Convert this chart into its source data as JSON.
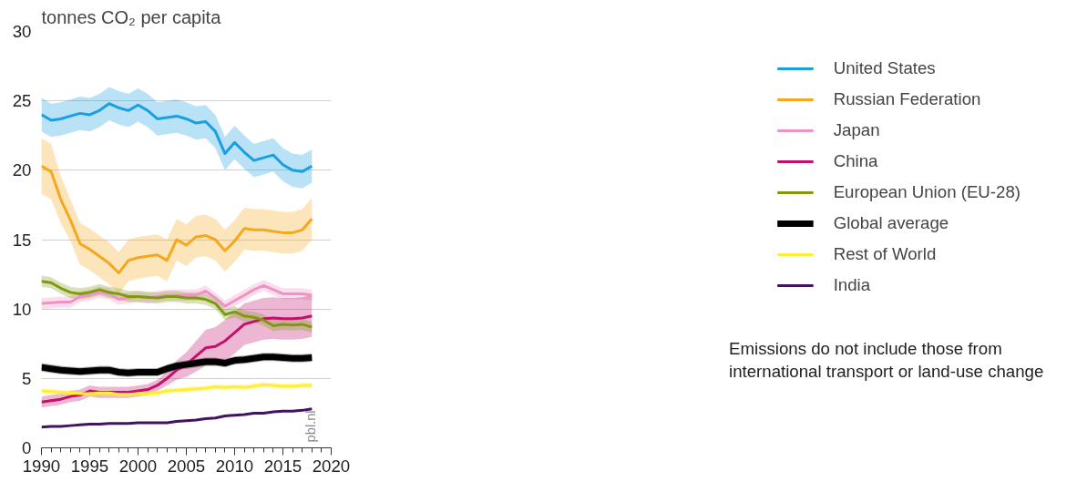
{
  "chart_data": {
    "type": "line",
    "ylabel": "tonnes CO₂ per capita",
    "x": [
      1990,
      1991,
      1992,
      1993,
      1994,
      1995,
      1996,
      1997,
      1998,
      1999,
      2000,
      2001,
      2002,
      2003,
      2004,
      2005,
      2006,
      2007,
      2008,
      2009,
      2010,
      2011,
      2012,
      2013,
      2014,
      2015,
      2016,
      2017,
      2018
    ],
    "xlim": [
      1990,
      2020
    ],
    "xticks": [
      1990,
      1995,
      2000,
      2005,
      2010,
      2015,
      2020
    ],
    "ylim": [
      0,
      30
    ],
    "yticks": [
      0,
      5,
      10,
      15,
      20,
      25,
      30
    ],
    "grid": "y",
    "legend": "right",
    "annotations": [
      "Emissions do not include those from international transport or land-use change",
      "pbl.nl"
    ],
    "series": [
      {
        "name": "United States",
        "color": "#1a9fe0",
        "values": [
          24.0,
          23.6,
          23.7,
          23.9,
          24.1,
          24.0,
          24.3,
          24.8,
          24.5,
          24.3,
          24.7,
          24.3,
          23.7,
          23.8,
          23.9,
          23.7,
          23.4,
          23.5,
          22.8,
          21.2,
          22.0,
          21.3,
          20.7,
          20.9,
          21.1,
          20.4,
          20.0,
          19.9,
          20.3
        ],
        "upper": [
          25.2,
          24.8,
          24.9,
          25.1,
          25.3,
          25.2,
          25.5,
          26.0,
          25.7,
          25.5,
          25.9,
          25.5,
          24.9,
          25.0,
          25.1,
          24.9,
          24.6,
          24.7,
          24.0,
          22.4,
          23.2,
          22.5,
          21.9,
          22.1,
          22.3,
          21.6,
          21.2,
          21.1,
          21.5
        ],
        "lower": [
          22.8,
          22.4,
          22.5,
          22.7,
          22.9,
          22.8,
          23.1,
          23.6,
          23.3,
          23.1,
          23.5,
          23.1,
          22.5,
          22.6,
          22.7,
          22.5,
          22.2,
          22.3,
          21.6,
          20.0,
          20.8,
          20.1,
          19.5,
          19.7,
          19.9,
          19.2,
          18.8,
          18.7,
          19.1
        ]
      },
      {
        "name": "Russian Federation",
        "color": "#f5a81c",
        "values": [
          20.3,
          19.9,
          17.9,
          16.4,
          14.7,
          14.3,
          13.8,
          13.3,
          12.6,
          13.5,
          13.7,
          13.8,
          13.9,
          13.5,
          15.0,
          14.6,
          15.2,
          15.3,
          15.0,
          14.2,
          14.9,
          15.8,
          15.7,
          15.7,
          15.6,
          15.5,
          15.5,
          15.7,
          16.5
        ],
        "upper": [
          22.3,
          21.9,
          19.6,
          17.9,
          16.2,
          15.8,
          15.3,
          14.8,
          14.1,
          15.0,
          15.2,
          15.3,
          15.4,
          15.0,
          16.5,
          16.1,
          16.7,
          16.8,
          16.5,
          15.7,
          16.4,
          17.3,
          17.2,
          17.2,
          17.1,
          17.0,
          17.0,
          17.2,
          18.0
        ],
        "lower": [
          18.3,
          17.9,
          16.2,
          14.9,
          13.2,
          12.8,
          12.3,
          11.8,
          11.1,
          12.0,
          12.2,
          12.3,
          12.4,
          12.0,
          13.5,
          13.1,
          13.7,
          13.8,
          13.5,
          12.7,
          13.4,
          14.3,
          14.2,
          14.2,
          14.1,
          14.0,
          14.0,
          14.2,
          15.0
        ]
      },
      {
        "name": "Japan",
        "color": "#ee93c4",
        "values": [
          10.4,
          10.45,
          10.5,
          10.5,
          10.9,
          11.0,
          11.2,
          11.1,
          10.7,
          10.8,
          10.9,
          10.8,
          10.9,
          11.0,
          11.0,
          11.0,
          11.0,
          11.3,
          10.8,
          10.2,
          10.6,
          11.0,
          11.4,
          11.7,
          11.4,
          11.1,
          11.1,
          11.1,
          11.0
        ],
        "upper": [
          10.8,
          10.85,
          10.9,
          10.9,
          11.3,
          11.4,
          11.6,
          11.5,
          11.1,
          11.2,
          11.3,
          11.2,
          11.3,
          11.4,
          11.4,
          11.4,
          11.4,
          11.7,
          11.2,
          10.6,
          11.0,
          11.4,
          11.8,
          12.1,
          11.8,
          11.5,
          11.5,
          11.5,
          11.4
        ],
        "lower": [
          10.0,
          10.05,
          10.1,
          10.1,
          10.5,
          10.6,
          10.8,
          10.7,
          10.3,
          10.4,
          10.5,
          10.4,
          10.5,
          10.6,
          10.6,
          10.6,
          10.6,
          10.9,
          10.4,
          9.8,
          10.2,
          10.6,
          11.0,
          11.3,
          11.0,
          10.7,
          10.7,
          10.7,
          10.6
        ]
      },
      {
        "name": "China",
        "color": "#c2106d",
        "values": [
          3.3,
          3.4,
          3.5,
          3.7,
          3.8,
          4.1,
          4.0,
          4.0,
          4.0,
          4.0,
          4.1,
          4.2,
          4.5,
          5.0,
          5.6,
          6.0,
          6.6,
          7.2,
          7.3,
          7.7,
          8.3,
          8.9,
          9.1,
          9.3,
          9.35,
          9.3,
          9.3,
          9.35,
          9.5
        ],
        "upper": [
          3.7,
          3.8,
          3.9,
          4.1,
          4.2,
          4.5,
          4.4,
          4.4,
          4.4,
          4.4,
          4.5,
          4.6,
          4.9,
          5.5,
          6.3,
          6.9,
          7.7,
          8.5,
          8.7,
          9.2,
          9.8,
          10.4,
          10.6,
          10.8,
          10.85,
          10.8,
          10.8,
          10.85,
          11.0
        ],
        "lower": [
          2.9,
          3.0,
          3.1,
          3.3,
          3.4,
          3.7,
          3.6,
          3.6,
          3.6,
          3.6,
          3.7,
          3.8,
          4.1,
          4.5,
          4.9,
          5.1,
          5.5,
          5.9,
          5.9,
          6.2,
          6.8,
          7.4,
          7.6,
          7.8,
          7.85,
          7.8,
          7.8,
          7.85,
          8.0
        ]
      },
      {
        "name": "European Union (EU-28)",
        "color": "#7f9a10",
        "values": [
          12.0,
          11.9,
          11.5,
          11.2,
          11.1,
          11.2,
          11.4,
          11.2,
          11.1,
          10.9,
          10.9,
          10.85,
          10.8,
          10.9,
          10.9,
          10.8,
          10.8,
          10.7,
          10.4,
          9.6,
          9.8,
          9.5,
          9.4,
          9.2,
          8.8,
          8.9,
          8.85,
          8.9,
          8.7
        ],
        "upper": [
          12.4,
          12.3,
          11.9,
          11.6,
          11.5,
          11.6,
          11.8,
          11.6,
          11.5,
          11.3,
          11.3,
          11.25,
          11.2,
          11.3,
          11.3,
          11.2,
          11.2,
          11.1,
          10.8,
          10.0,
          10.2,
          9.9,
          9.8,
          9.6,
          9.2,
          9.3,
          9.25,
          9.3,
          9.1
        ],
        "lower": [
          11.6,
          11.5,
          11.1,
          10.8,
          10.7,
          10.8,
          11.0,
          10.8,
          10.7,
          10.5,
          10.5,
          10.45,
          10.4,
          10.5,
          10.5,
          10.4,
          10.4,
          10.3,
          10.0,
          9.2,
          9.4,
          9.1,
          9.0,
          8.8,
          8.4,
          8.5,
          8.45,
          8.5,
          8.3
        ]
      },
      {
        "name": "Global average",
        "color": "#000000",
        "values": [
          5.8,
          5.7,
          5.6,
          5.55,
          5.5,
          5.55,
          5.6,
          5.6,
          5.45,
          5.4,
          5.45,
          5.45,
          5.45,
          5.7,
          5.9,
          6.0,
          6.1,
          6.2,
          6.2,
          6.1,
          6.3,
          6.35,
          6.45,
          6.55,
          6.55,
          6.5,
          6.45,
          6.45,
          6.5
        ],
        "upper": [
          6.1,
          6.0,
          5.9,
          5.85,
          5.8,
          5.85,
          5.9,
          5.9,
          5.75,
          5.7,
          5.75,
          5.75,
          5.75,
          6.0,
          6.2,
          6.3,
          6.4,
          6.5,
          6.5,
          6.4,
          6.6,
          6.65,
          6.75,
          6.85,
          6.85,
          6.8,
          6.75,
          6.75,
          6.8
        ],
        "lower": [
          5.5,
          5.4,
          5.3,
          5.25,
          5.2,
          5.25,
          5.3,
          5.3,
          5.15,
          5.1,
          5.15,
          5.15,
          5.15,
          5.4,
          5.6,
          5.7,
          5.8,
          5.9,
          5.9,
          5.8,
          6.0,
          6.05,
          6.15,
          6.25,
          6.25,
          6.2,
          6.15,
          6.15,
          6.2
        ]
      },
      {
        "name": "Rest of World",
        "color": "#ffee33",
        "values": [
          4.1,
          4.05,
          4.0,
          3.95,
          3.9,
          3.9,
          3.95,
          3.95,
          3.85,
          3.85,
          3.9,
          3.9,
          3.95,
          4.1,
          4.15,
          4.2,
          4.25,
          4.3,
          4.4,
          4.35,
          4.4,
          4.35,
          4.45,
          4.55,
          4.5,
          4.45,
          4.45,
          4.5,
          4.5
        ],
        "upper": [
          4.3,
          4.25,
          4.2,
          4.15,
          4.1,
          4.1,
          4.15,
          4.15,
          4.05,
          4.05,
          4.1,
          4.1,
          4.15,
          4.3,
          4.35,
          4.4,
          4.45,
          4.5,
          4.6,
          4.55,
          4.6,
          4.55,
          4.65,
          4.75,
          4.7,
          4.65,
          4.65,
          4.7,
          4.7
        ],
        "lower": [
          3.9,
          3.85,
          3.8,
          3.75,
          3.7,
          3.7,
          3.75,
          3.75,
          3.65,
          3.65,
          3.7,
          3.7,
          3.75,
          3.9,
          3.95,
          4.0,
          4.05,
          4.1,
          4.2,
          4.15,
          4.2,
          4.15,
          4.25,
          4.35,
          4.3,
          4.25,
          4.25,
          4.3,
          4.3
        ]
      },
      {
        "name": "India",
        "color": "#42145f",
        "values": [
          1.5,
          1.55,
          1.55,
          1.6,
          1.65,
          1.7,
          1.7,
          1.75,
          1.75,
          1.75,
          1.8,
          1.8,
          1.8,
          1.8,
          1.9,
          1.95,
          2.0,
          2.1,
          2.15,
          2.3,
          2.35,
          2.4,
          2.5,
          2.5,
          2.6,
          2.65,
          2.65,
          2.7,
          2.8
        ]
      }
    ]
  }
}
